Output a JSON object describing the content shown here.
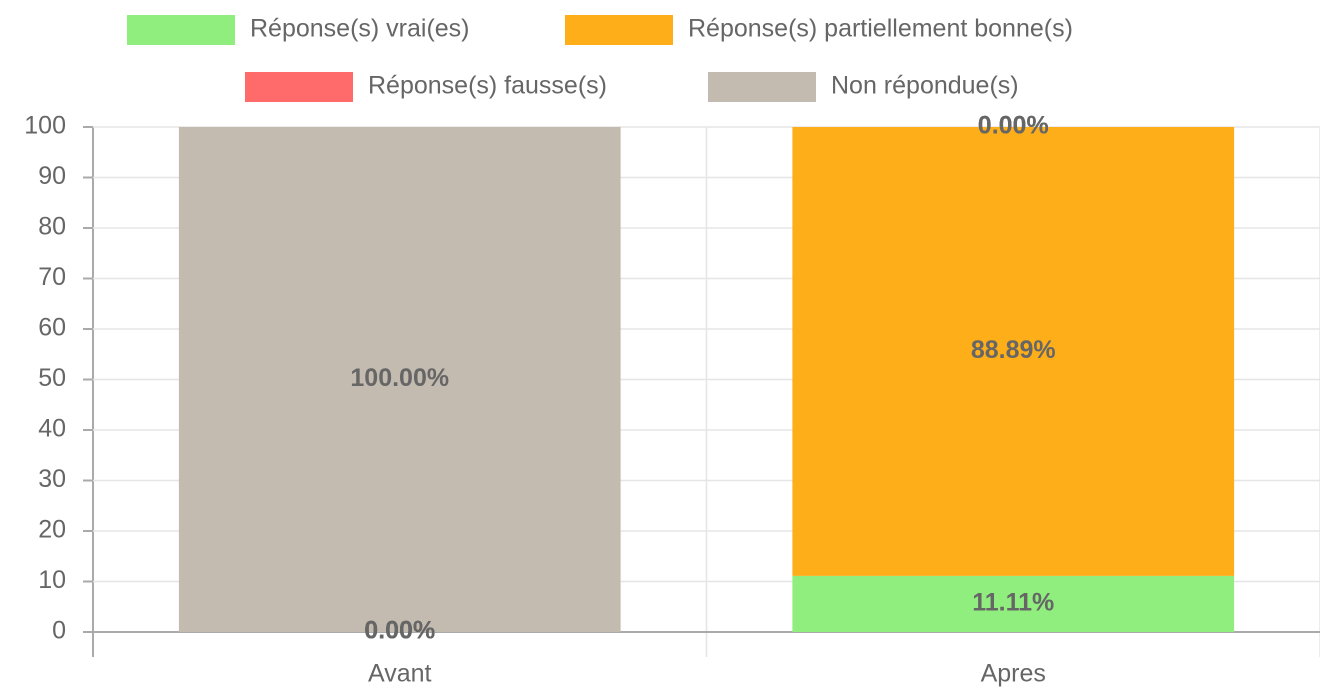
{
  "chart_data": {
    "type": "stacked_bar",
    "categories": [
      "Avant",
      "Apres"
    ],
    "series": [
      {
        "name": "Réponse(s) vrai(es)",
        "color": "#90ee7e",
        "values": [
          0,
          11.11
        ],
        "value_labels": [
          "0.00%",
          "11.11%"
        ]
      },
      {
        "name": "Réponse(s) partiellement bonne(s)",
        "color": "#fdae19",
        "values": [
          0,
          88.89
        ],
        "value_labels": [
          "0.00%",
          "88.89%"
        ]
      },
      {
        "name": "Réponse(s) fausse(s)",
        "color": "#ff6b6b",
        "values": [
          0,
          0
        ],
        "value_labels": [
          "0.00%",
          "0.00%"
        ]
      },
      {
        "name": "Non répondue(s)",
        "color": "#c3bbaf",
        "values": [
          100,
          0
        ],
        "value_labels": [
          "100.00%",
          "0.00%"
        ]
      }
    ],
    "ylim": [
      0,
      100
    ],
    "yticks": [
      0,
      10,
      20,
      30,
      40,
      50,
      60,
      70,
      80,
      90,
      100
    ],
    "grid": true
  }
}
